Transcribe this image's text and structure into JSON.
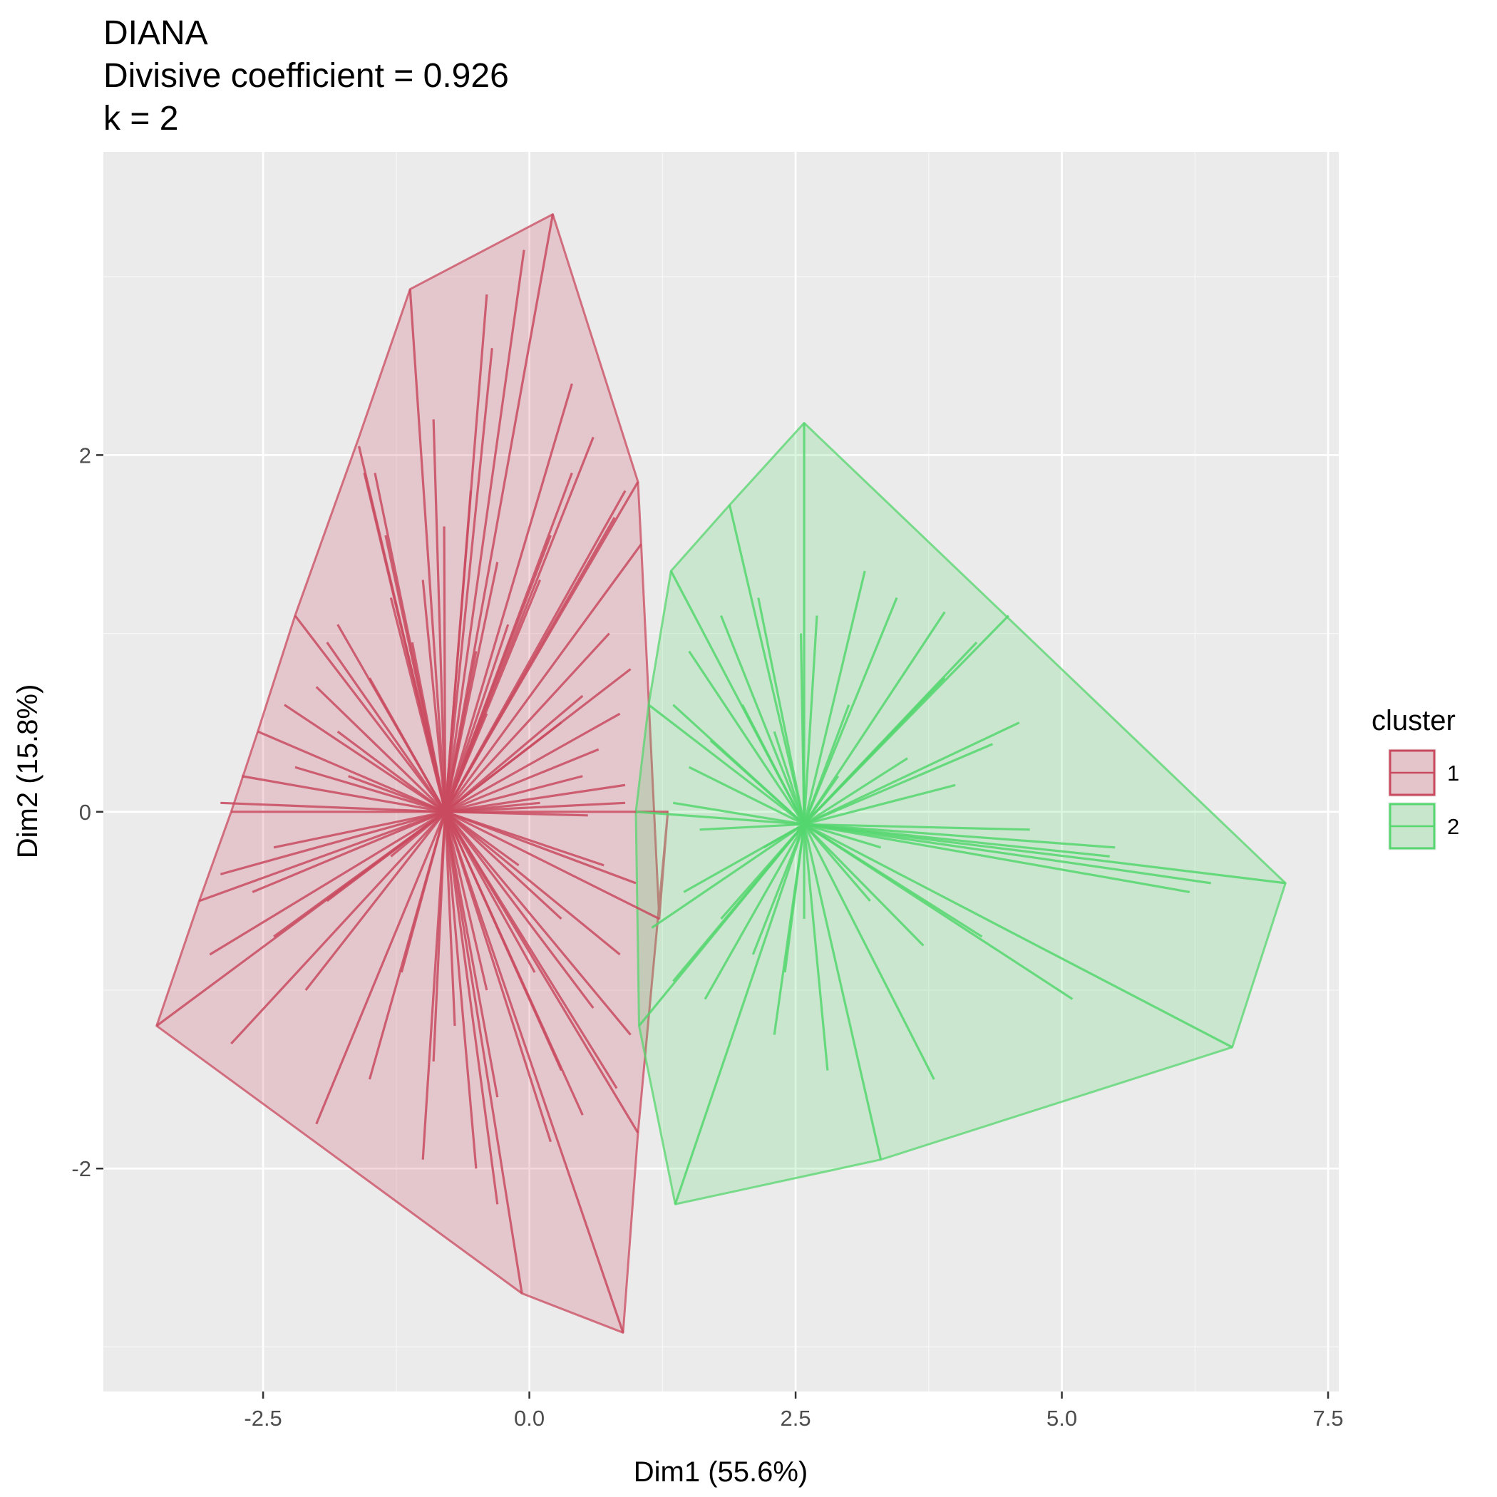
{
  "chart_data": {
    "type": "scatter",
    "title_lines": [
      "DIANA",
      "Divisive coefficient = 0.926",
      "k = 2"
    ],
    "xlabel": "Dim1 (55.6%)",
    "ylabel": "Dim2 (15.8%)",
    "xlim": [
      -4.0,
      7.6
    ],
    "ylim": [
      -3.25,
      3.7
    ],
    "x_ticks": [
      -2.5,
      0.0,
      2.5,
      5.0,
      7.5
    ],
    "x_tick_labels": [
      "-2.5",
      "0.0",
      "2.5",
      "5.0",
      "7.5"
    ],
    "y_ticks": [
      -2,
      0,
      2
    ],
    "y_tick_labels": [
      "-2",
      "0",
      "2"
    ],
    "grid": true,
    "legend": {
      "title": "cluster",
      "position": "right",
      "entries": [
        {
          "label": "1",
          "color": "#C94A5F",
          "fill": "#E3C5CA"
        },
        {
          "label": "2",
          "color": "#55D66E",
          "fill": "#C7E6CC"
        }
      ]
    },
    "series": [
      {
        "name": "1",
        "color": "#C94A5F",
        "centroid": [
          -0.79,
          0.0
        ],
        "hull": [
          [
            0.22,
            3.35
          ],
          [
            -1.12,
            2.93
          ],
          [
            -1.6,
            2.1
          ],
          [
            -2.2,
            1.1
          ],
          [
            -2.55,
            0.45
          ],
          [
            -2.8,
            0.0
          ],
          [
            -3.1,
            -0.5
          ],
          [
            -3.5,
            -1.2
          ],
          [
            -0.07,
            -2.7
          ],
          [
            0.88,
            -2.92
          ],
          [
            1.02,
            -1.8
          ],
          [
            1.3,
            0.0
          ],
          [
            1.22,
            -0.6
          ],
          [
            1.05,
            1.5
          ],
          [
            1.02,
            1.85
          ]
        ],
        "points": [
          [
            0.22,
            3.35
          ],
          [
            -1.12,
            2.93
          ],
          [
            -0.05,
            3.15
          ],
          [
            -0.4,
            2.9
          ],
          [
            -0.35,
            2.6
          ],
          [
            0.6,
            2.1
          ],
          [
            -0.9,
            2.2
          ],
          [
            -1.6,
            2.05
          ],
          [
            -1.55,
            1.9
          ],
          [
            -1.45,
            1.9
          ],
          [
            0.9,
            1.8
          ],
          [
            0.4,
            1.9
          ],
          [
            -0.55,
            1.8
          ],
          [
            0.8,
            1.65
          ],
          [
            1.05,
            1.5
          ],
          [
            1.02,
            1.85
          ],
          [
            -0.3,
            1.4
          ],
          [
            0.1,
            1.3
          ],
          [
            -1.0,
            1.3
          ],
          [
            -1.3,
            1.2
          ],
          [
            -2.2,
            1.1
          ],
          [
            -1.8,
            1.05
          ],
          [
            0.75,
            1.0
          ],
          [
            0.95,
            0.8
          ],
          [
            0.5,
            0.65
          ],
          [
            -1.9,
            0.95
          ],
          [
            -1.1,
            0.95
          ],
          [
            -0.2,
            1.05
          ],
          [
            -2.0,
            0.7
          ],
          [
            -2.3,
            0.6
          ],
          [
            -1.5,
            0.75
          ],
          [
            0.3,
            0.5
          ],
          [
            0.85,
            0.55
          ],
          [
            -2.55,
            0.45
          ],
          [
            -1.8,
            0.45
          ],
          [
            -0.4,
            0.55
          ],
          [
            -2.7,
            0.2
          ],
          [
            -2.2,
            0.25
          ],
          [
            0.5,
            0.2
          ],
          [
            0.9,
            0.15
          ],
          [
            -2.8,
            0.0
          ],
          [
            -2.9,
            0.05
          ],
          [
            0.1,
            0.05
          ],
          [
            0.55,
            -0.02
          ],
          [
            0.9,
            0.05
          ],
          [
            1.3,
            0.0
          ],
          [
            -3.1,
            -0.5
          ],
          [
            -2.9,
            -0.35
          ],
          [
            -2.4,
            -0.2
          ],
          [
            0.7,
            -0.3
          ],
          [
            1.0,
            -0.4
          ],
          [
            1.22,
            -0.6
          ],
          [
            -2.6,
            -0.45
          ],
          [
            -3.0,
            -0.8
          ],
          [
            -1.9,
            -0.5
          ],
          [
            0.3,
            -0.6
          ],
          [
            0.85,
            -0.8
          ],
          [
            -3.5,
            -1.2
          ],
          [
            -2.8,
            -1.3
          ],
          [
            -2.1,
            -1.0
          ],
          [
            -0.4,
            -1.0
          ],
          [
            0.6,
            -1.1
          ],
          [
            0.95,
            -1.25
          ],
          [
            -2.0,
            -1.75
          ],
          [
            -1.5,
            -1.5
          ],
          [
            -0.9,
            -1.4
          ],
          [
            -0.3,
            -1.6
          ],
          [
            0.3,
            -1.45
          ],
          [
            0.82,
            -1.55
          ],
          [
            -1.0,
            -1.95
          ],
          [
            -0.5,
            -2.0
          ],
          [
            0.2,
            -1.85
          ],
          [
            1.02,
            -1.8
          ],
          [
            -0.07,
            -2.7
          ],
          [
            0.88,
            -2.92
          ],
          [
            -0.3,
            -2.2
          ],
          [
            -0.7,
            -1.2
          ],
          [
            -1.2,
            -0.9
          ],
          [
            0.05,
            -0.9
          ],
          [
            -0.5,
            0.9
          ],
          [
            0.2,
            1.55
          ],
          [
            -0.8,
            1.6
          ],
          [
            -1.35,
            1.55
          ],
          [
            -1.7,
            0.2
          ],
          [
            0.65,
            0.35
          ],
          [
            -1.3,
            -0.25
          ],
          [
            -0.1,
            -0.3
          ],
          [
            0.5,
            -1.7
          ],
          [
            -2.4,
            -0.7
          ],
          [
            0.4,
            2.4
          ]
        ]
      },
      {
        "name": "2",
        "color": "#55D66E",
        "centroid": [
          2.58,
          -0.07
        ],
        "hull": [
          [
            2.58,
            2.18
          ],
          [
            1.88,
            1.72
          ],
          [
            1.33,
            1.35
          ],
          [
            1.12,
            0.6
          ],
          [
            1.0,
            0.0
          ],
          [
            1.03,
            -1.2
          ],
          [
            1.37,
            -2.2
          ],
          [
            3.3,
            -1.95
          ],
          [
            6.6,
            -1.32
          ],
          [
            7.1,
            -0.4
          ]
        ],
        "points": [
          [
            2.58,
            2.18
          ],
          [
            1.88,
            1.72
          ],
          [
            1.33,
            1.35
          ],
          [
            3.15,
            1.35
          ],
          [
            3.9,
            1.12
          ],
          [
            3.45,
            1.2
          ],
          [
            2.15,
            1.2
          ],
          [
            2.55,
            1.0
          ],
          [
            1.8,
            1.1
          ],
          [
            2.7,
            1.1
          ],
          [
            4.5,
            1.1
          ],
          [
            4.2,
            0.95
          ],
          [
            1.5,
            0.9
          ],
          [
            3.9,
            0.75
          ],
          [
            1.35,
            0.6
          ],
          [
            1.12,
            0.6
          ],
          [
            2.3,
            0.45
          ],
          [
            4.35,
            0.38
          ],
          [
            3.55,
            0.3
          ],
          [
            1.5,
            0.25
          ],
          [
            4.0,
            0.15
          ],
          [
            1.35,
            0.05
          ],
          [
            1.0,
            0.0
          ],
          [
            4.7,
            -0.1
          ],
          [
            5.45,
            -0.25
          ],
          [
            5.5,
            -0.2
          ],
          [
            6.4,
            -0.4
          ],
          [
            7.1,
            -0.4
          ],
          [
            6.2,
            -0.45
          ],
          [
            1.45,
            -0.45
          ],
          [
            1.15,
            -0.65
          ],
          [
            4.25,
            -0.7
          ],
          [
            2.1,
            -0.8
          ],
          [
            3.7,
            -0.75
          ],
          [
            5.1,
            -1.05
          ],
          [
            1.35,
            -0.95
          ],
          [
            1.03,
            -1.2
          ],
          [
            1.65,
            -1.05
          ],
          [
            2.3,
            -1.25
          ],
          [
            3.8,
            -1.5
          ],
          [
            2.8,
            -1.45
          ],
          [
            6.6,
            -1.32
          ],
          [
            3.3,
            -1.95
          ],
          [
            1.37,
            -2.2
          ],
          [
            2.58,
            -0.6
          ],
          [
            3.2,
            -0.5
          ],
          [
            1.8,
            -0.6
          ],
          [
            2.0,
            0.6
          ],
          [
            3.0,
            0.6
          ],
          [
            1.7,
            0.4
          ],
          [
            3.3,
            -0.2
          ],
          [
            2.2,
            -0.2
          ],
          [
            4.6,
            0.5
          ],
          [
            1.6,
            -0.1
          ],
          [
            2.9,
            0.2
          ],
          [
            2.4,
            -0.9
          ]
        ]
      }
    ]
  }
}
